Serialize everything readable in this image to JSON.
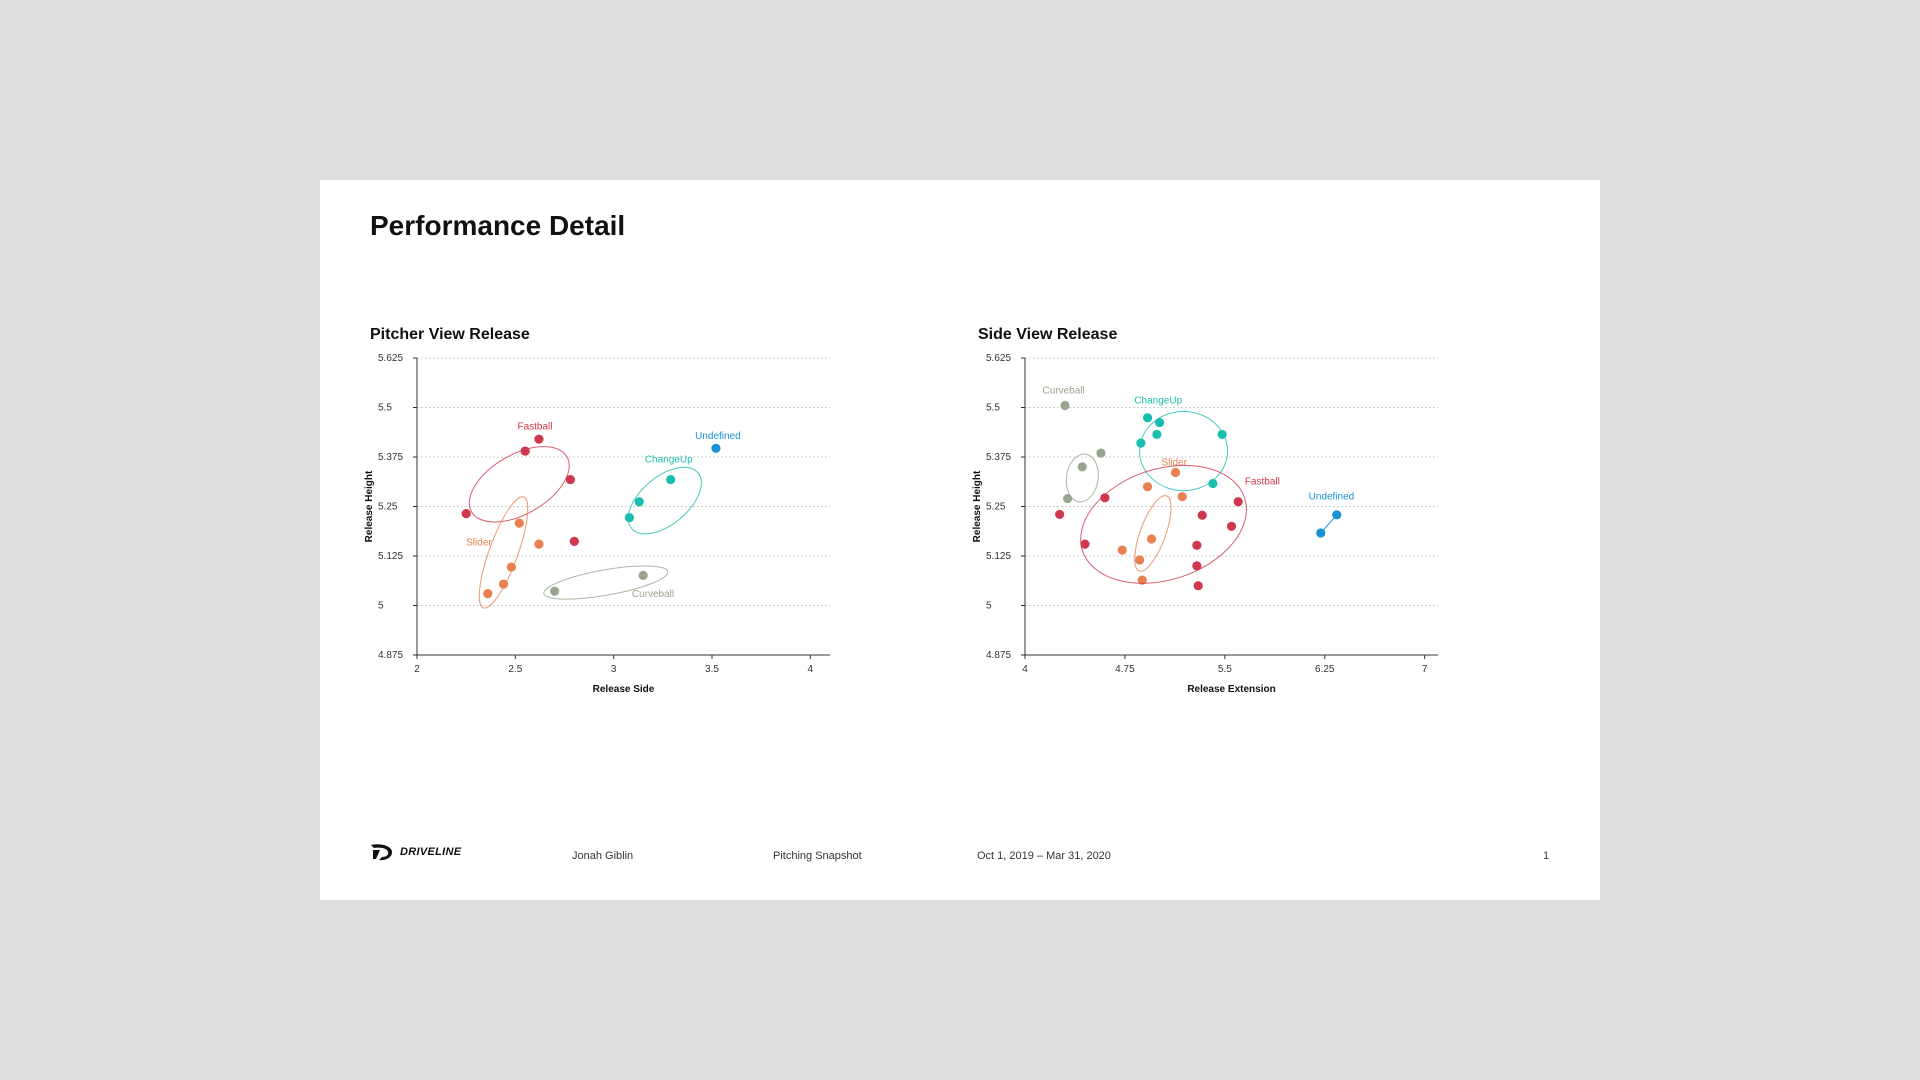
{
  "page": {
    "title": "Performance Detail"
  },
  "colors": {
    "Fastball": "#d0374f",
    "Slider": "#e8804f",
    "ChangeUp": "#19bfae",
    "Curveball": "#9aa58f",
    "Undefined": "#1993d6",
    "grid": "#bdbdbd",
    "axis": "#333333"
  },
  "chart_data": [
    {
      "type": "scatter",
      "title": "Pitcher View Release",
      "xlabel": "Release Side",
      "ylabel": "Release Height",
      "xlim": [
        2,
        4.1
      ],
      "ylim": [
        4.875,
        5.625
      ],
      "xticks": [
        2,
        2.5,
        3,
        3.5,
        4
      ],
      "xtick_labels": [
        "2",
        "2.5",
        "3",
        "3.5",
        "4"
      ],
      "yticks": [
        4.875,
        5,
        5.125,
        5.25,
        5.375,
        5.5,
        5.625
      ],
      "ytick_labels": [
        "4.875",
        "5",
        "5.125",
        "5.25",
        "5.375",
        "5.5",
        "5.625"
      ],
      "grid": "horizontal dotted",
      "series": [
        {
          "name": "Fastball",
          "label": {
            "x": 2.6,
            "y": 5.445,
            "anchor": "middle"
          },
          "ellipse": {
            "cx": 2.52,
            "cy": 5.306,
            "rx": 0.28,
            "ry": 0.075,
            "angle": -30
          },
          "points": [
            [
              2.25,
              5.232
            ],
            [
              2.55,
              5.39
            ],
            [
              2.62,
              5.42
            ],
            [
              2.78,
              5.318
            ],
            [
              2.8,
              5.162
            ]
          ]
        },
        {
          "name": "Slider",
          "label": {
            "x": 2.38,
            "y": 5.152,
            "anchor": "end"
          },
          "ellipse": {
            "cx": 2.44,
            "cy": 5.134,
            "rx": 0.3,
            "ry": 0.036,
            "angle": -70
          },
          "points": [
            [
              2.52,
              5.208
            ],
            [
              2.62,
              5.155
            ],
            [
              2.48,
              5.097
            ],
            [
              2.44,
              5.054
            ],
            [
              2.36,
              5.03
            ]
          ]
        },
        {
          "name": "ChangeUp",
          "label": {
            "x": 3.28,
            "y": 5.361,
            "anchor": "middle"
          },
          "ellipse": {
            "cx": 3.26,
            "cy": 5.265,
            "rx": 0.22,
            "ry": 0.06,
            "angle": -40
          },
          "points": [
            [
              3.08,
              5.222
            ],
            [
              3.13,
              5.262
            ],
            [
              3.29,
              5.318
            ]
          ]
        },
        {
          "name": "Undefined",
          "label": {
            "x": 3.53,
            "y": 5.421,
            "anchor": "middle"
          },
          "points": [
            [
              3.52,
              5.397
            ]
          ]
        },
        {
          "name": "Curveball",
          "label": {
            "x": 3.2,
            "y": 5.022,
            "anchor": "middle"
          },
          "ellipse": {
            "cx": 2.96,
            "cy": 5.058,
            "rx": 0.32,
            "ry": 0.032,
            "angle": -10
          },
          "points": [
            [
              2.7,
              5.036
            ],
            [
              3.15,
              5.076
            ]
          ]
        }
      ]
    },
    {
      "type": "scatter",
      "title": "Side View Release",
      "xlabel": "Release Extension",
      "ylabel": "Release Height",
      "xlim": [
        4,
        7.1
      ],
      "ylim": [
        4.875,
        5.625
      ],
      "xticks": [
        4,
        4.75,
        5.5,
        6.25,
        7
      ],
      "xtick_labels": [
        "4",
        "4.75",
        "5.5",
        "6.25",
        "7"
      ],
      "yticks": [
        4.875,
        5,
        5.125,
        5.25,
        5.375,
        5.5,
        5.625
      ],
      "ytick_labels": [
        "4.875",
        "5",
        "5.125",
        "5.25",
        "5.375",
        "5.5",
        "5.625"
      ],
      "grid": "horizontal dotted",
      "series": [
        {
          "name": "Curveball",
          "label": {
            "x": 4.29,
            "y": 5.535,
            "anchor": "middle"
          },
          "ellipse": {
            "cx": 4.43,
            "cy": 5.322,
            "rx": 0.18,
            "ry": 0.04,
            "angle": -82
          },
          "points": [
            [
              4.3,
              5.505
            ],
            [
              4.43,
              5.35
            ],
            [
              4.57,
              5.385
            ],
            [
              4.32,
              5.27
            ]
          ]
        },
        {
          "name": "ChangeUp",
          "label": {
            "x": 5.0,
            "y": 5.51,
            "anchor": "middle"
          },
          "ellipse": {
            "cx": 5.19,
            "cy": 5.39,
            "rx": 0.33,
            "ry": 0.1,
            "angle": 0
          },
          "points": [
            [
              4.92,
              5.474
            ],
            [
              5.01,
              5.462
            ],
            [
              4.99,
              5.432
            ],
            [
              4.87,
              5.41
            ],
            [
              5.48,
              5.432
            ],
            [
              5.41,
              5.308
            ]
          ]
        },
        {
          "name": "Slider",
          "label": {
            "x": 5.12,
            "y": 5.354,
            "anchor": "middle"
          },
          "ellipse": {
            "cx": 4.96,
            "cy": 5.182,
            "rx": 0.3,
            "ry": 0.032,
            "angle": -70
          },
          "points": [
            [
              5.13,
              5.336
            ],
            [
              4.92,
              5.3
            ],
            [
              5.18,
              5.275
            ],
            [
              4.95,
              5.168
            ],
            [
              4.73,
              5.14
            ],
            [
              4.86,
              5.115
            ],
            [
              4.88,
              5.064
            ]
          ]
        },
        {
          "name": "Fastball",
          "label": {
            "x": 5.65,
            "y": 5.305,
            "anchor": "start"
          },
          "ellipse": {
            "cx": 5.04,
            "cy": 5.205,
            "rx": 0.64,
            "ry": 0.14,
            "angle": -18
          },
          "points": [
            [
              4.26,
              5.23
            ],
            [
              4.6,
              5.272
            ],
            [
              4.45,
              5.155
            ],
            [
              5.6,
              5.262
            ],
            [
              5.33,
              5.228
            ],
            [
              5.55,
              5.2
            ],
            [
              5.29,
              5.152
            ],
            [
              5.29,
              5.1
            ],
            [
              5.3,
              5.05
            ]
          ]
        },
        {
          "name": "Undefined",
          "label": {
            "x": 6.3,
            "y": 5.268,
            "anchor": "middle"
          },
          "connect": true,
          "points": [
            [
              6.22,
              5.183
            ],
            [
              6.34,
              5.229
            ]
          ]
        }
      ]
    }
  ],
  "footer": {
    "brand": "DRIVELINE",
    "name": "Jonah Giblin",
    "report": "Pitching Snapshot",
    "date_range": "Oct 1, 2019 – Mar 31, 2020",
    "page_number": "1"
  }
}
